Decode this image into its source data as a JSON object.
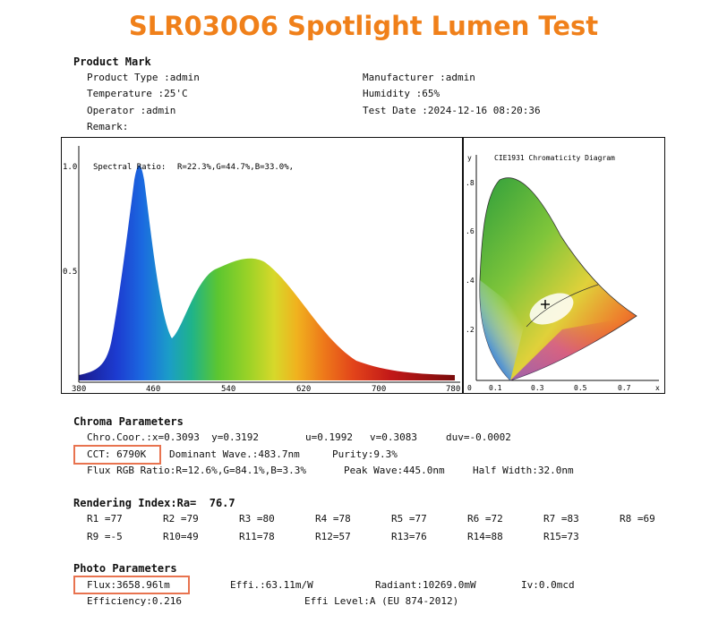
{
  "title": "SLR030O6 Spotlight Lumen Test",
  "product": {
    "heading": "Product Mark",
    "type": "Product Type :admin",
    "manufacturer": "Manufacturer :admin",
    "temperature": "Temperature :25'C",
    "humidity": "Humidity :65%",
    "operator": "Operator :admin",
    "test_date": "Test Date :2024-12-16 08:20:36",
    "remark": "Remark:"
  },
  "spectrum": {
    "label": "Spectral Ratio:",
    "ratio": "R=22.3%,G=44.7%,B=33.0%,",
    "y_ticks": [
      "1.0",
      "0.5"
    ],
    "x_ticks": [
      "380",
      "460",
      "540",
      "620",
      "700",
      "780"
    ]
  },
  "cie": {
    "title": "CIE1931 Chromaticity Diagram",
    "y_axis_label": "y",
    "x_axis_label": "x",
    "y_ticks": [
      ".8",
      ".6",
      ".4",
      ".2"
    ],
    "x_ticks": [
      "0",
      "0.1",
      "0.3",
      "0.5",
      "0.7"
    ]
  },
  "chroma": {
    "heading": "Chroma Parameters",
    "line1_coord": "Chro.Coor.:x=0.3093  y=0.3192",
    "line1_u": "u=0.1992",
    "line1_v": "v=0.3083",
    "line1_duv": "duv=-0.0002",
    "cct": "CCT: 6790K",
    "dominant": "Dominant Wave.:483.7nm",
    "purity": "Purity:9.3%",
    "flux_ratio": "Flux RGB Ratio:R=12.6%,G=84.1%,B=3.3%",
    "peak": "Peak Wave:445.0nm",
    "half_width": "Half Width:32.0nm"
  },
  "rendering": {
    "heading": "Rendering Index:Ra=  76.7",
    "row1": [
      "R1 =77",
      "R2 =79",
      "R3 =80",
      "R4 =78",
      "R5 =77",
      "R6 =72",
      "R7 =83",
      "R8 =69"
    ],
    "row2": [
      "R9 =-5",
      "R10=49",
      "R11=78",
      "R12=57",
      "R13=76",
      "R14=88",
      "R15=73"
    ]
  },
  "photo": {
    "heading": "Photo Parameters",
    "flux": "Flux:3658.96lm",
    "effi": "Effi.:63.11m/W",
    "radiant": "Radiant:10269.0mW",
    "iv": "Iv:0.0mcd",
    "efficiency": "Efficiency:0.216",
    "effi_level": "Effi Level:A (EU 874-2012)"
  },
  "colors": {
    "title": "#f0801a",
    "highlight_box": "#e8734f"
  }
}
